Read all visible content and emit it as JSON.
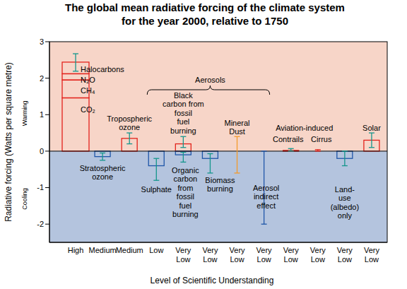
{
  "chart_data": {
    "type": "bar",
    "title": "The global mean radiative forcing of the climate system\nfor the year 2000, relative to 1750",
    "y_label": "Radiative forcing  (Watts per square metre)",
    "x_label": "Level  of Scientific Understanding",
    "warming_label": "Warming",
    "cooling_label": "Cooling",
    "annotations": [
      "Aerosols",
      "Aviation-induced"
    ],
    "categories": [
      "High",
      "Medium",
      "Medium",
      "Low",
      "Very Low",
      "Very Low",
      "Very Low",
      "Very Low",
      "Very Low",
      "Very Low",
      "Very Low",
      "Very Low"
    ],
    "groups": [
      [
        {
          "parts": [
            {
              "name": "CO₂",
              "value": 1.46
            },
            {
              "name": "CH₄",
              "value": 0.49
            },
            {
              "name": "N₂O",
              "value": 0.17
            },
            {
              "name": "Halocarbons",
              "value": 0.32
            }
          ],
          "error": [
            2.19,
            2.67
          ],
          "color": "#e3231c"
        }
      ],
      [
        {
          "label": "Stratospheric\nozone",
          "value": -0.15,
          "error": [
            -0.25,
            -0.05
          ],
          "color": "#1f56a8"
        }
      ],
      [
        {
          "label": "Tropospheric\nozone",
          "value": 0.35,
          "error": [
            0.2,
            0.5
          ],
          "color": "#e3231c"
        }
      ],
      [
        {
          "label": "Sulphate",
          "value": -0.4,
          "error": [
            -0.8,
            -0.2
          ],
          "color": "#1f56a8"
        }
      ],
      [
        {
          "label": "Black\ncarbon from\nfossil\nfuel\nburning",
          "value": 0.2,
          "error": [
            0.1,
            0.4
          ],
          "color": "#e3231c"
        },
        {
          "label": "Organic\ncarbon\nfrom\nfossil\nfuel\nburning",
          "value": -0.1,
          "error": [
            -0.3,
            -0.03
          ],
          "color": "#1f56a8"
        }
      ],
      [
        {
          "label": "Biomass\nburning",
          "value": -0.2,
          "error": [
            -0.6,
            -0.07
          ],
          "color": "#1f56a8"
        }
      ],
      [
        {
          "label": "Mineral\nDust",
          "value": null,
          "error": [
            -0.6,
            0.4
          ],
          "color": "#f39a2b"
        }
      ],
      [
        {
          "label": "Aerosol\nindirect\neffect",
          "value": null,
          "error": [
            -2,
            0
          ],
          "color": "#1f56a8"
        }
      ],
      [
        {
          "label": "Contrails",
          "value": 0.02,
          "error": [
            0.005,
            0.07
          ],
          "color": "#e3231c"
        }
      ],
      [
        {
          "label": "Cirrus",
          "value": null,
          "error": [
            0,
            0.04
          ],
          "color": "#e3231c"
        }
      ],
      [
        {
          "label": "Land-\nuse\n(albedo)\nonly",
          "value": -0.2,
          "error": [
            -0.4,
            0
          ],
          "color": "#1f56a8"
        }
      ],
      [
        {
          "label": "Solar",
          "value": 0.3,
          "error": [
            0.1,
            0.5
          ],
          "color": "#e3231c"
        }
      ]
    ],
    "ylim": [
      -2.5,
      3
    ],
    "yticks": [
      -2,
      -1,
      0,
      1,
      2,
      3
    ]
  }
}
